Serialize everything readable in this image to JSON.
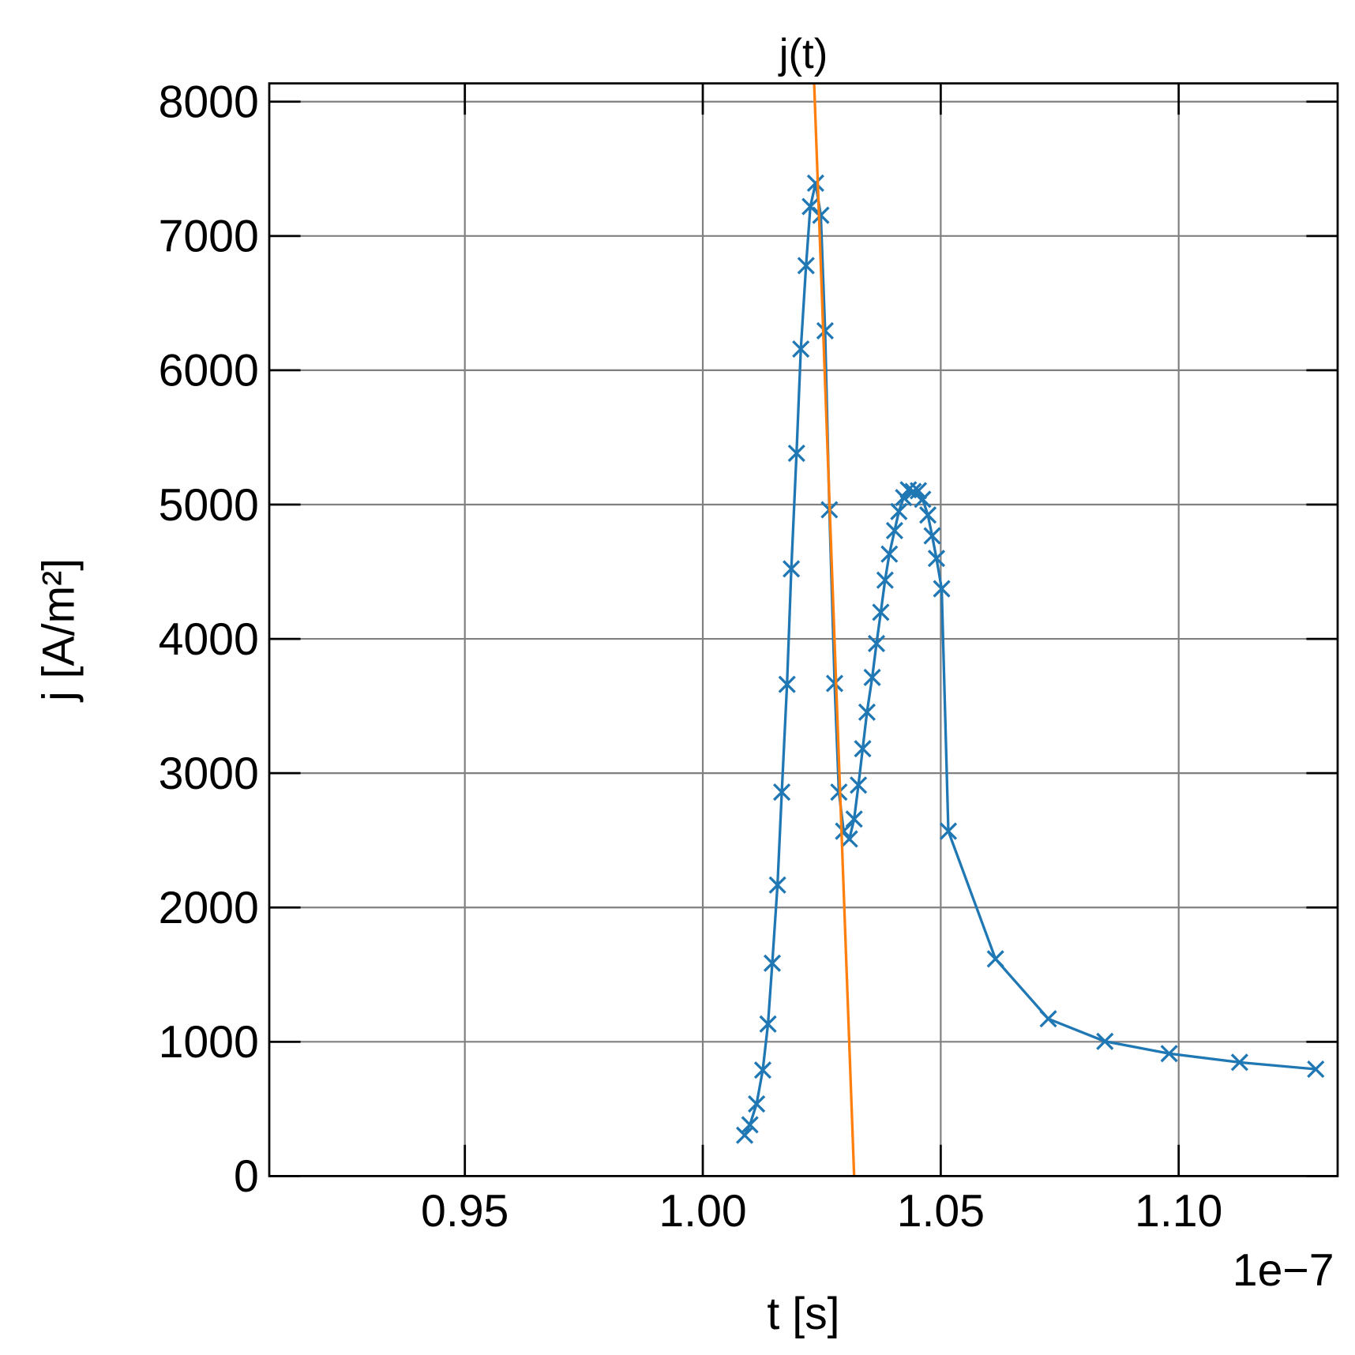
{
  "chart_data": {
    "type": "line",
    "title": "j(t)",
    "xlabel": "t [s]",
    "ylabel": "j [A/m²]",
    "x_offset_label": "1e−7",
    "xlim": [
      0.9089,
      1.1334
    ],
    "ylim": [
      0,
      8136
    ],
    "xticks": [
      0.95,
      {
        "value": 1.0,
        "label": "1.00"
      },
      1.05,
      {
        "value": 1.1,
        "label": "1.10"
      }
    ],
    "yticks": [
      0,
      1000,
      2000,
      3000,
      4000,
      5000,
      6000,
      7000,
      8000
    ],
    "grid": true,
    "series": [
      {
        "color": "#1f77b4",
        "marker": "x",
        "x": [
          1.0088,
          1.0099,
          1.0113,
          1.0126,
          1.0137,
          1.0146,
          1.0157,
          1.0166,
          1.0177,
          1.0186,
          1.0197,
          1.0206,
          1.0217,
          1.0226,
          1.0237,
          1.0248,
          1.0257,
          1.0266,
          1.0277,
          1.0286,
          1.0296,
          1.0308,
          1.0318,
          1.0327,
          1.0336,
          1.0345,
          1.0356,
          1.0365,
          1.0374,
          1.0383,
          1.0392,
          1.0403,
          1.0412,
          1.0422,
          1.0432,
          1.0442,
          1.0453,
          1.0462,
          1.0473,
          1.0482,
          1.0491,
          1.0502,
          1.0516,
          1.0615,
          1.0726,
          1.0845,
          1.098,
          1.1128,
          1.1288
        ],
        "values": [
          304,
          382,
          537,
          789,
          1132,
          1585,
          2167,
          2859,
          3661,
          4521,
          5382,
          6158,
          6779,
          7219,
          7393,
          7154,
          6294,
          4961,
          3668,
          2859,
          2568,
          2510,
          2658,
          2911,
          3182,
          3454,
          3713,
          3965,
          4198,
          4437,
          4631,
          4806,
          4948,
          5052,
          5110,
          5097,
          5103,
          5039,
          4922,
          4767,
          4599,
          4373,
          2568,
          1617,
          1171,
          1003,
          912,
          847,
          796
        ]
      },
      {
        "color": "#ff7f0e",
        "marker": null,
        "x": [
          1.0234,
          1.0318
        ],
        "values": [
          8136,
          0
        ]
      }
    ]
  }
}
